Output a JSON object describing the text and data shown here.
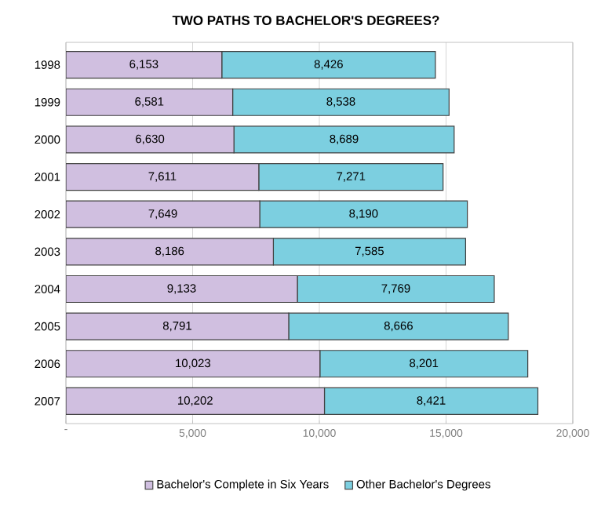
{
  "chart_data": {
    "type": "bar",
    "orientation": "horizontal",
    "stacked": true,
    "title": "TWO PATHS TO BACHELOR'S DEGREES?",
    "categories": [
      "1998",
      "1999",
      "2000",
      "2001",
      "2002",
      "2003",
      "2004",
      "2005",
      "2006",
      "2007"
    ],
    "series": [
      {
        "name": "Bachelor's Complete in Six Years",
        "color": "#d0bfe0",
        "values": [
          6153,
          6581,
          6630,
          7611,
          7649,
          8186,
          9133,
          8791,
          10023,
          10202
        ],
        "value_labels": [
          "6,153",
          "6,581",
          "6,630",
          "7,611",
          "7,649",
          "8,186",
          "9,133",
          "8,791",
          "10,023",
          "10,202"
        ]
      },
      {
        "name": "Other Bachelor's Degrees",
        "color": "#7ccfe0",
        "values": [
          8426,
          8538,
          8689,
          7271,
          8190,
          7585,
          7769,
          8666,
          8201,
          8421
        ],
        "value_labels": [
          "8,426",
          "8,538",
          "8,689",
          "7,271",
          "8,190",
          "7,585",
          "7,769",
          "8,666",
          "8,201",
          "8,421"
        ]
      }
    ],
    "xlim": [
      0,
      20000
    ],
    "xticks": [
      {
        "value": 0,
        "label": "-"
      },
      {
        "value": 5000,
        "label": "5,000"
      },
      {
        "value": 10000,
        "label": "10,000"
      },
      {
        "value": 15000,
        "label": "15,000"
      },
      {
        "value": 20000,
        "label": "20,000"
      }
    ],
    "grid": "x",
    "legend": "bottom"
  }
}
